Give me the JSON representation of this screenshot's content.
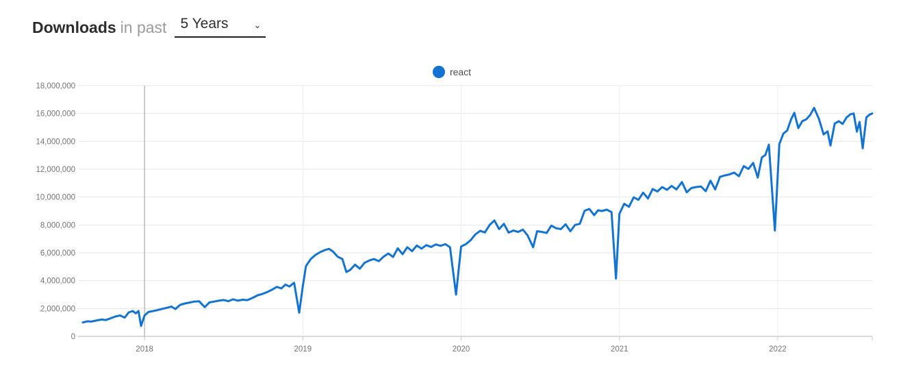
{
  "header": {
    "title_bold": "Downloads",
    "title_rest": "in past",
    "range_value": "5 Years"
  },
  "icons": {
    "chevron_down": "⌄"
  },
  "chart_data": {
    "type": "line",
    "title": "Downloads in past 5 Years",
    "legend_position": "top-center",
    "grid": true,
    "x_ticks": [
      "2018",
      "2019",
      "2020",
      "2021",
      "2022"
    ],
    "x_tick_years": [
      2018,
      2019,
      2020,
      2021,
      2022
    ],
    "x_range": [
      2017.606,
      2022.597
    ],
    "y_tick_step_millions": 2,
    "y_tick_labels": [
      "0",
      "2,000,000",
      "4,000,000",
      "6,000,000",
      "8,000,000",
      "10,000,000",
      "12,000,000",
      "14,000,000",
      "16,000,000",
      "18,000,000"
    ],
    "ylim_millions": [
      0,
      18
    ],
    "unit": "weekly npm downloads, millions",
    "series": [
      {
        "name": "react",
        "color": "#1273d2",
        "points": [
          [
            2017.61,
            1.0
          ],
          [
            2017.64,
            1.08
          ],
          [
            2017.665,
            1.06
          ],
          [
            2017.7,
            1.15
          ],
          [
            2017.73,
            1.21
          ],
          [
            2017.755,
            1.17
          ],
          [
            2017.785,
            1.3
          ],
          [
            2017.815,
            1.42
          ],
          [
            2017.845,
            1.5
          ],
          [
            2017.875,
            1.35
          ],
          [
            2017.9,
            1.72
          ],
          [
            2017.925,
            1.82
          ],
          [
            2017.945,
            1.65
          ],
          [
            2017.962,
            1.82
          ],
          [
            2017.978,
            0.75
          ],
          [
            2018.0,
            1.5
          ],
          [
            2018.025,
            1.75
          ],
          [
            2018.055,
            1.82
          ],
          [
            2018.085,
            1.9
          ],
          [
            2018.115,
            1.98
          ],
          [
            2018.145,
            2.06
          ],
          [
            2018.17,
            2.14
          ],
          [
            2018.195,
            1.96
          ],
          [
            2018.225,
            2.26
          ],
          [
            2018.255,
            2.36
          ],
          [
            2018.285,
            2.43
          ],
          [
            2018.315,
            2.5
          ],
          [
            2018.345,
            2.52
          ],
          [
            2018.38,
            2.1
          ],
          [
            2018.41,
            2.44
          ],
          [
            2018.44,
            2.5
          ],
          [
            2018.47,
            2.56
          ],
          [
            2018.5,
            2.61
          ],
          [
            2018.53,
            2.53
          ],
          [
            2018.56,
            2.66
          ],
          [
            2018.59,
            2.56
          ],
          [
            2018.62,
            2.63
          ],
          [
            2018.65,
            2.6
          ],
          [
            2018.685,
            2.78
          ],
          [
            2018.715,
            2.95
          ],
          [
            2018.745,
            3.05
          ],
          [
            2018.775,
            3.18
          ],
          [
            2018.805,
            3.35
          ],
          [
            2018.835,
            3.55
          ],
          [
            2018.865,
            3.45
          ],
          [
            2018.89,
            3.72
          ],
          [
            2018.915,
            3.58
          ],
          [
            2018.945,
            3.85
          ],
          [
            2018.977,
            1.7
          ],
          [
            2019.0,
            3.6
          ],
          [
            2019.02,
            5.05
          ],
          [
            2019.05,
            5.55
          ],
          [
            2019.08,
            5.85
          ],
          [
            2019.11,
            6.05
          ],
          [
            2019.14,
            6.2
          ],
          [
            2019.165,
            6.28
          ],
          [
            2019.19,
            6.1
          ],
          [
            2019.22,
            5.72
          ],
          [
            2019.25,
            5.55
          ],
          [
            2019.275,
            4.62
          ],
          [
            2019.3,
            4.78
          ],
          [
            2019.33,
            5.15
          ],
          [
            2019.36,
            4.86
          ],
          [
            2019.39,
            5.28
          ],
          [
            2019.42,
            5.45
          ],
          [
            2019.45,
            5.55
          ],
          [
            2019.48,
            5.4
          ],
          [
            2019.51,
            5.72
          ],
          [
            2019.54,
            5.95
          ],
          [
            2019.57,
            5.7
          ],
          [
            2019.6,
            6.32
          ],
          [
            2019.63,
            5.9
          ],
          [
            2019.66,
            6.4
          ],
          [
            2019.69,
            6.12
          ],
          [
            2019.72,
            6.52
          ],
          [
            2019.75,
            6.3
          ],
          [
            2019.78,
            6.55
          ],
          [
            2019.81,
            6.42
          ],
          [
            2019.84,
            6.6
          ],
          [
            2019.87,
            6.5
          ],
          [
            2019.9,
            6.62
          ],
          [
            2019.93,
            6.4
          ],
          [
            2019.968,
            3.0
          ],
          [
            2020.0,
            6.45
          ],
          [
            2020.03,
            6.62
          ],
          [
            2020.06,
            6.9
          ],
          [
            2020.09,
            7.32
          ],
          [
            2020.12,
            7.58
          ],
          [
            2020.15,
            7.46
          ],
          [
            2020.18,
            8.0
          ],
          [
            2020.21,
            8.32
          ],
          [
            2020.24,
            7.7
          ],
          [
            2020.27,
            8.08
          ],
          [
            2020.3,
            7.45
          ],
          [
            2020.33,
            7.6
          ],
          [
            2020.36,
            7.5
          ],
          [
            2020.39,
            7.66
          ],
          [
            2020.42,
            7.25
          ],
          [
            2020.455,
            6.4
          ],
          [
            2020.48,
            7.55
          ],
          [
            2020.51,
            7.5
          ],
          [
            2020.54,
            7.42
          ],
          [
            2020.57,
            7.95
          ],
          [
            2020.6,
            7.76
          ],
          [
            2020.63,
            7.7
          ],
          [
            2020.66,
            8.05
          ],
          [
            2020.69,
            7.55
          ],
          [
            2020.72,
            8.0
          ],
          [
            2020.75,
            8.08
          ],
          [
            2020.78,
            9.02
          ],
          [
            2020.81,
            9.15
          ],
          [
            2020.84,
            8.7
          ],
          [
            2020.865,
            9.05
          ],
          [
            2020.89,
            9.0
          ],
          [
            2020.92,
            9.1
          ],
          [
            2020.95,
            8.92
          ],
          [
            2020.978,
            4.15
          ],
          [
            2021.0,
            8.8
          ],
          [
            2021.03,
            9.52
          ],
          [
            2021.06,
            9.3
          ],
          [
            2021.09,
            9.98
          ],
          [
            2021.12,
            9.8
          ],
          [
            2021.15,
            10.32
          ],
          [
            2021.18,
            9.9
          ],
          [
            2021.21,
            10.58
          ],
          [
            2021.24,
            10.4
          ],
          [
            2021.27,
            10.72
          ],
          [
            2021.3,
            10.52
          ],
          [
            2021.33,
            10.8
          ],
          [
            2021.36,
            10.55
          ],
          [
            2021.395,
            11.08
          ],
          [
            2021.425,
            10.35
          ],
          [
            2021.455,
            10.65
          ],
          [
            2021.485,
            10.72
          ],
          [
            2021.515,
            10.76
          ],
          [
            2021.545,
            10.42
          ],
          [
            2021.575,
            11.18
          ],
          [
            2021.605,
            10.55
          ],
          [
            2021.635,
            11.45
          ],
          [
            2021.665,
            11.55
          ],
          [
            2021.695,
            11.62
          ],
          [
            2021.725,
            11.76
          ],
          [
            2021.755,
            11.5
          ],
          [
            2021.785,
            12.22
          ],
          [
            2021.815,
            12.02
          ],
          [
            2021.845,
            12.45
          ],
          [
            2021.874,
            11.4
          ],
          [
            2021.9,
            12.85
          ],
          [
            2021.922,
            13.02
          ],
          [
            2021.944,
            13.76
          ],
          [
            2021.982,
            7.6
          ],
          [
            2022.01,
            13.8
          ],
          [
            2022.035,
            14.55
          ],
          [
            2022.06,
            14.78
          ],
          [
            2022.085,
            15.6
          ],
          [
            2022.105,
            16.05
          ],
          [
            2022.13,
            14.95
          ],
          [
            2022.155,
            15.45
          ],
          [
            2022.18,
            15.58
          ],
          [
            2022.205,
            15.9
          ],
          [
            2022.23,
            16.4
          ],
          [
            2022.26,
            15.62
          ],
          [
            2022.29,
            14.5
          ],
          [
            2022.315,
            14.72
          ],
          [
            2022.333,
            13.7
          ],
          [
            2022.36,
            15.28
          ],
          [
            2022.385,
            15.45
          ],
          [
            2022.41,
            15.25
          ],
          [
            2022.435,
            15.72
          ],
          [
            2022.46,
            15.95
          ],
          [
            2022.48,
            16.0
          ],
          [
            2022.5,
            14.7
          ],
          [
            2022.517,
            15.4
          ],
          [
            2022.537,
            13.5
          ],
          [
            2022.56,
            15.72
          ],
          [
            2022.58,
            15.92
          ],
          [
            2022.597,
            16.0
          ]
        ]
      }
    ]
  }
}
